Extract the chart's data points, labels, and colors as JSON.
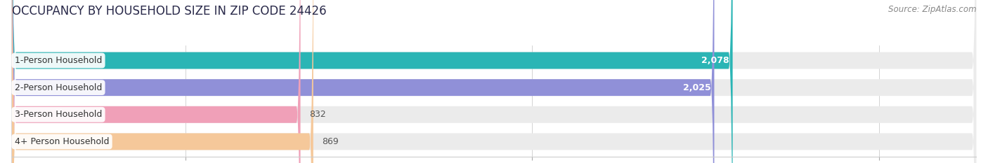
{
  "title": "OCCUPANCY BY HOUSEHOLD SIZE IN ZIP CODE 24426",
  "source": "Source: ZipAtlas.com",
  "categories": [
    "1-Person Household",
    "2-Person Household",
    "3-Person Household",
    "4+ Person Household"
  ],
  "values": [
    2078,
    2025,
    832,
    869
  ],
  "bar_colors": [
    "#2ab5b5",
    "#9090d8",
    "#f0a0b8",
    "#f5c89a"
  ],
  "bar_bg_color": "#e8e8e8",
  "xlim": [
    0,
    2780
  ],
  "xticks": [
    500,
    1500,
    2500
  ],
  "title_fontsize": 12,
  "label_fontsize": 9,
  "value_fontsize": 9,
  "source_fontsize": 8.5,
  "background_color": "#ffffff",
  "bar_bg_color2": "#ebebeb",
  "bar_height": 0.62
}
